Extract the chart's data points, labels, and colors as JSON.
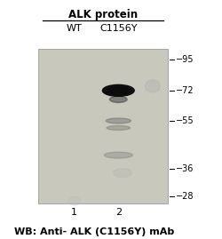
{
  "title_main": "ALK protein",
  "col1_label": "WT",
  "col2_label": "C1156Y",
  "lane_labels": [
    "1",
    "2"
  ],
  "wb_label": "WB: Anti- ALK (C1156Y) mAb",
  "mw_markers": [
    95,
    72,
    55,
    36,
    28
  ],
  "gel_bg_color": "#c8c8bc",
  "background_color": "#ffffff",
  "title_fontsize": 8.5,
  "label_fontsize": 8.0,
  "mw_fontsize": 7.0,
  "wb_fontsize": 8.0
}
